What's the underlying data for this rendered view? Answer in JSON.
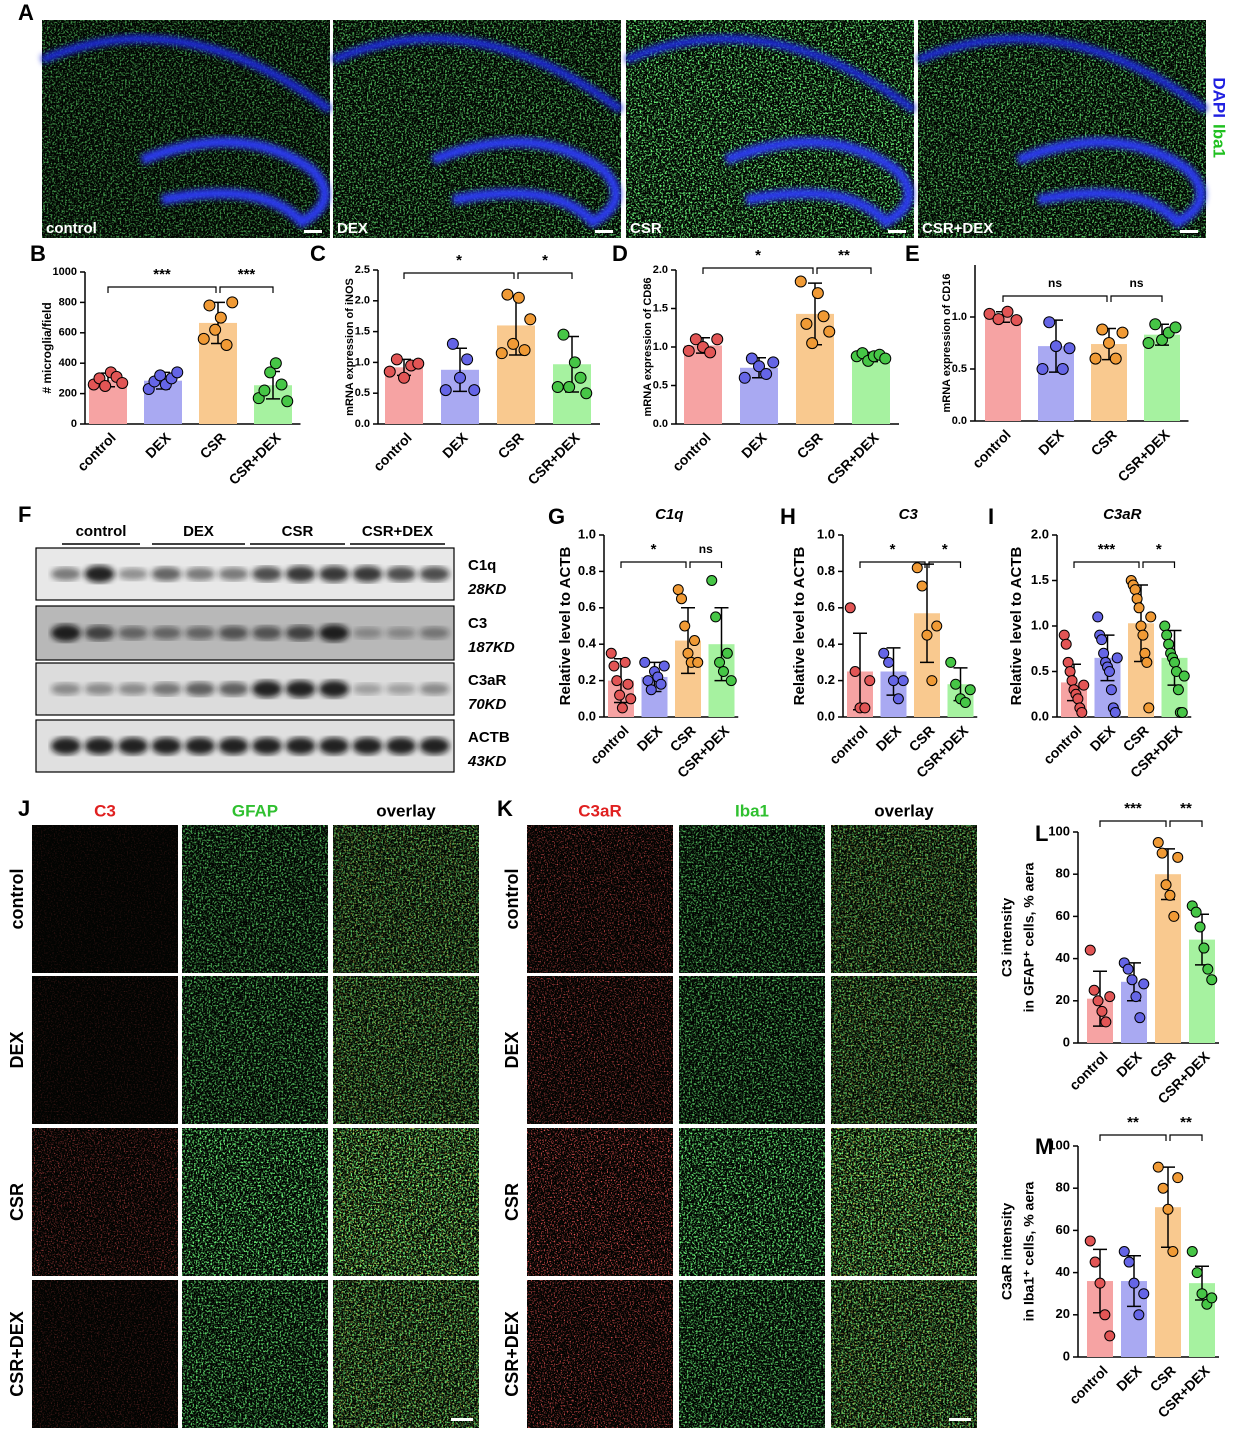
{
  "panel_a": {
    "label": "A",
    "images": [
      "control",
      "DEX",
      "CSR",
      "CSR+DEX"
    ],
    "stain": [
      "DAPI",
      "Iba1"
    ]
  },
  "panel_f": {
    "label": "F",
    "groups": [
      "control",
      "DEX",
      "CSR",
      "CSR+DEX"
    ],
    "bands": [
      {
        "name": "C1q",
        "size": "28KD"
      },
      {
        "name": "C3",
        "size": "187KD"
      },
      {
        "name": "C3aR",
        "size": "70KD"
      },
      {
        "name": "ACTB",
        "size": "43KD"
      }
    ]
  },
  "panel_j": {
    "label": "J",
    "columns": [
      "C3",
      "GFAP",
      "overlay"
    ],
    "rows": [
      "control",
      "DEX",
      "CSR",
      "CSR+DEX"
    ]
  },
  "panel_k": {
    "label": "K",
    "columns": [
      "C3aR",
      "Iba1",
      "overlay"
    ],
    "rows": [
      "control",
      "DEX",
      "CSR",
      "CSR+DEX"
    ]
  },
  "chart_data": [
    {
      "type": "bar",
      "panel": "B",
      "ylabel": [
        "# microglia/field"
      ],
      "categories": [
        "control",
        "DEX",
        "CSR",
        "CSR+DEX"
      ],
      "values": [
        290,
        285,
        665,
        255
      ],
      "errors": [
        45,
        55,
        135,
        90
      ],
      "points": [
        [
          260,
          300,
          250,
          340,
          310,
          270
        ],
        [
          230,
          280,
          320,
          260,
          300,
          340
        ],
        [
          560,
          780,
          620,
          700,
          520,
          800
        ],
        [
          170,
          220,
          340,
          400,
          260,
          150
        ]
      ],
      "ylim": [
        0,
        1000
      ],
      "yticks": [
        0,
        200,
        400,
        600,
        800,
        1000
      ],
      "significance": [
        {
          "from": 0,
          "to": 2,
          "label": "***"
        },
        {
          "from": 2,
          "to": 3,
          "label": "***"
        }
      ],
      "colors": [
        "#f6a3a3",
        "#a9a9f2",
        "#f9c98f",
        "#a6f2a0"
      ],
      "point_colors": [
        "#e25555",
        "#6565e6",
        "#f09a35",
        "#46c646"
      ]
    },
    {
      "type": "bar",
      "panel": "C",
      "ylabel": [
        "mRNA expression of iNOS"
      ],
      "categories": [
        "control",
        "DEX",
        "CSR",
        "CSR+DEX"
      ],
      "values": [
        0.92,
        0.88,
        1.6,
        0.97
      ],
      "errors": [
        0.13,
        0.35,
        0.48,
        0.45
      ],
      "points": [
        [
          0.85,
          1.05,
          0.75,
          0.95,
          0.98
        ],
        [
          0.55,
          1.3,
          0.75,
          1.05,
          0.55
        ],
        [
          1.15,
          2.1,
          1.3,
          2.05,
          1.2,
          1.7
        ],
        [
          0.6,
          1.45,
          0.6,
          1.0,
          0.75,
          0.5
        ]
      ],
      "ylim": [
        0,
        2.5
      ],
      "yticks": [
        {
          "value": 0,
          "label": "0.0"
        },
        {
          "value": 0.5,
          "label": "0.5"
        },
        {
          "value": 1,
          "label": "1.0"
        },
        {
          "value": 1.5,
          "label": "1.5"
        },
        {
          "value": 2,
          "label": "2.0"
        },
        {
          "value": 2.5,
          "label": "2.5"
        }
      ],
      "significance": [
        {
          "from": 0,
          "to": 2,
          "label": "*"
        },
        {
          "from": 2,
          "to": 3,
          "label": "*"
        }
      ],
      "colors": [
        "#f6a3a3",
        "#a9a9f2",
        "#f9c98f",
        "#a6f2a0"
      ],
      "point_colors": [
        "#e25555",
        "#6565e6",
        "#f09a35",
        "#46c646"
      ]
    },
    {
      "type": "bar",
      "panel": "D",
      "ylabel": [
        "mRNA expression of CD86"
      ],
      "categories": [
        "control",
        "DEX",
        "CSR",
        "CSR+DEX"
      ],
      "values": [
        1.02,
        0.73,
        1.43,
        0.87
      ],
      "errors": [
        0.1,
        0.13,
        0.4,
        0.06
      ],
      "points": [
        [
          0.95,
          1.1,
          1.0,
          0.93,
          1.1
        ],
        [
          0.6,
          0.85,
          0.75,
          0.65,
          0.8
        ],
        [
          1.85,
          1.3,
          1.05,
          1.7,
          1.4,
          1.2
        ],
        [
          0.88,
          0.92,
          0.82,
          0.88,
          0.9,
          0.85
        ]
      ],
      "ylim": [
        0,
        2
      ],
      "yticks": [
        {
          "value": 0,
          "label": "0.0"
        },
        {
          "value": 0.5,
          "label": "0.5"
        },
        {
          "value": 1,
          "label": "1.0"
        },
        {
          "value": 1.5,
          "label": "1.5"
        },
        {
          "value": 2,
          "label": "2.0"
        }
      ],
      "significance": [
        {
          "from": 0,
          "to": 2,
          "label": "*"
        },
        {
          "from": 2,
          "to": 3,
          "label": "**"
        }
      ],
      "colors": [
        "#f6a3a3",
        "#a9a9f2",
        "#f9c98f",
        "#a6f2a0"
      ],
      "point_colors": [
        "#e25555",
        "#6565e6",
        "#f09a35",
        "#46c646"
      ]
    },
    {
      "type": "bar",
      "panel": "E",
      "ylabel": [
        "mRNA expression of CD16"
      ],
      "categories": [
        "control",
        "DEX",
        "CSR",
        "CSR+DEX"
      ],
      "values": [
        1.0,
        0.72,
        0.74,
        0.83
      ],
      "errors": [
        0.05,
        0.25,
        0.15,
        0.1
      ],
      "points": [
        [
          1.03,
          0.98,
          1.05,
          0.97
        ],
        [
          0.5,
          0.95,
          0.72,
          0.5,
          0.7
        ],
        [
          0.6,
          0.88,
          0.75,
          0.6,
          0.85
        ],
        [
          0.75,
          0.93,
          0.78,
          0.85,
          0.9
        ]
      ],
      "ylim": [
        0,
        1.5
      ],
      "yticks": [
        {
          "value": 0,
          "label": "0.0"
        },
        {
          "value": 0.5,
          "label": "0.5"
        },
        {
          "value": 1,
          "label": "1.0"
        }
      ],
      "significance": [
        {
          "from": 0,
          "to": 2,
          "label": "ns"
        },
        {
          "from": 2,
          "to": 3,
          "label": "ns"
        }
      ],
      "colors": [
        "#f6a3a3",
        "#a9a9f2",
        "#f9c98f",
        "#a6f2a0"
      ],
      "point_colors": [
        "#e25555",
        "#6565e6",
        "#f09a35",
        "#46c646"
      ]
    },
    {
      "type": "bar",
      "panel": "G",
      "title": "C1q",
      "ylabel": [
        "Relative level to ACTB"
      ],
      "categories": [
        "control",
        "DEX",
        "CSR",
        "CSR+DEX"
      ],
      "values": [
        0.2,
        0.22,
        0.42,
        0.4
      ],
      "errors": [
        0.12,
        0.08,
        0.18,
        0.2
      ],
      "points": [
        [
          0.35,
          0.28,
          0.2,
          0.12,
          0.05,
          0.3,
          0.18,
          0.1
        ],
        [
          0.3,
          0.2,
          0.15,
          0.25,
          0.22,
          0.18,
          0.28
        ],
        [
          0.7,
          0.65,
          0.5,
          0.35,
          0.3,
          0.42,
          0.3
        ],
        [
          0.75,
          0.55,
          0.3,
          0.25,
          0.35,
          0.2
        ]
      ],
      "ylim": [
        0,
        1
      ],
      "yticks": [
        {
          "value": 0,
          "label": "0.0"
        },
        {
          "value": 0.2,
          "label": "0.2"
        },
        {
          "value": 0.4,
          "label": "0.4"
        },
        {
          "value": 0.6,
          "label": "0.6"
        },
        {
          "value": 0.8,
          "label": "0.8"
        },
        {
          "value": 1,
          "label": "1.0"
        }
      ],
      "significance": [
        {
          "from": 0,
          "to": 2,
          "label": "*"
        },
        {
          "from": 2,
          "to": 3,
          "label": "ns"
        }
      ],
      "colors": [
        "#f6a3a3",
        "#a9a9f2",
        "#f9c98f",
        "#a6f2a0"
      ],
      "point_colors": [
        "#e25555",
        "#6565e6",
        "#f09a35",
        "#46c646"
      ]
    },
    {
      "type": "bar",
      "panel": "H",
      "title": "C3",
      "ylabel": [
        "Relative level to ACTB"
      ],
      "categories": [
        "control",
        "DEX",
        "CSR",
        "CSR+DEX"
      ],
      "values": [
        0.25,
        0.25,
        0.57,
        0.18
      ],
      "errors": [
        0.21,
        0.13,
        0.27,
        0.09
      ],
      "points": [
        [
          0.6,
          0.25,
          0.05,
          0.05,
          0.2
        ],
        [
          0.35,
          0.3,
          0.2,
          0.1,
          0.2
        ],
        [
          0.82,
          0.72,
          0.45,
          0.2,
          0.5
        ],
        [
          0.3,
          0.18,
          0.1,
          0.08,
          0.15
        ]
      ],
      "ylim": [
        0,
        1
      ],
      "yticks": [
        {
          "value": 0,
          "label": "0.0"
        },
        {
          "value": 0.2,
          "label": "0.2"
        },
        {
          "value": 0.4,
          "label": "0.4"
        },
        {
          "value": 0.6,
          "label": "0.6"
        },
        {
          "value": 0.8,
          "label": "0.8"
        },
        {
          "value": 1,
          "label": "1.0"
        }
      ],
      "significance": [
        {
          "from": 0,
          "to": 2,
          "label": "*"
        },
        {
          "from": 2,
          "to": 3,
          "label": "*"
        }
      ],
      "colors": [
        "#f6a3a3",
        "#a9a9f2",
        "#f9c98f",
        "#a6f2a0"
      ],
      "point_colors": [
        "#e25555",
        "#6565e6",
        "#f09a35",
        "#46c646"
      ]
    },
    {
      "type": "bar",
      "panel": "I",
      "title": "C3aR",
      "ylabel": [
        "Relative level to ACTB"
      ],
      "categories": [
        "control",
        "DEX",
        "CSR",
        "CSR+DEX"
      ],
      "values": [
        0.38,
        0.65,
        1.03,
        0.65
      ],
      "errors": [
        0.2,
        0.25,
        0.42,
        0.3
      ],
      "points": [
        [
          0.9,
          0.8,
          0.6,
          0.5,
          0.4,
          0.3,
          0.25,
          0.2,
          0.1,
          0.05,
          0.35
        ],
        [
          1.1,
          0.9,
          0.85,
          0.7,
          0.6,
          0.55,
          0.5,
          0.3,
          0.1,
          0.05,
          0.65
        ],
        [
          1.5,
          1.45,
          1.4,
          1.3,
          1.2,
          1.0,
          0.9,
          0.7,
          0.6,
          0.1,
          1.1
        ],
        [
          1.0,
          0.9,
          0.8,
          0.7,
          0.65,
          0.6,
          0.5,
          0.3,
          0.05,
          0.05,
          0.45
        ]
      ],
      "ylim": [
        0,
        2
      ],
      "yticks": [
        {
          "value": 0,
          "label": "0.0"
        },
        {
          "value": 0.5,
          "label": "0.5"
        },
        {
          "value": 1,
          "label": "1.0"
        },
        {
          "value": 1.5,
          "label": "1.5"
        },
        {
          "value": 2,
          "label": "2.0"
        }
      ],
      "significance": [
        {
          "from": 0,
          "to": 2,
          "label": "***"
        },
        {
          "from": 2,
          "to": 3,
          "label": "*"
        }
      ],
      "colors": [
        "#f6a3a3",
        "#a9a9f2",
        "#f9c98f",
        "#a6f2a0"
      ],
      "point_colors": [
        "#e25555",
        "#6565e6",
        "#f09a35",
        "#46c646"
      ]
    },
    {
      "type": "bar",
      "panel": "L",
      "ylabel": [
        "C3 intensity",
        "in GFAP⁺ cells, % aera"
      ],
      "categories": [
        "control",
        "DEX",
        "CSR",
        "CSR+DEX"
      ],
      "values": [
        21,
        29,
        80,
        49
      ],
      "errors": [
        13,
        9,
        12,
        12
      ],
      "points": [
        [
          44,
          25,
          20,
          15,
          10,
          22
        ],
        [
          38,
          35,
          30,
          22,
          12,
          28
        ],
        [
          95,
          90,
          75,
          70,
          60,
          88
        ],
        [
          65,
          62,
          55,
          45,
          35,
          30
        ]
      ],
      "ylim": [
        0,
        100
      ],
      "yticks": [
        0,
        20,
        40,
        60,
        80,
        100
      ],
      "significance": [
        {
          "from": 0,
          "to": 2,
          "label": "***"
        },
        {
          "from": 2,
          "to": 3,
          "label": "**"
        }
      ],
      "colors": [
        "#f6a3a3",
        "#a9a9f2",
        "#f9c98f",
        "#a6f2a0"
      ],
      "point_colors": [
        "#e25555",
        "#6565e6",
        "#f09a35",
        "#46c646"
      ]
    },
    {
      "type": "bar",
      "panel": "M",
      "ylabel": [
        "C3aR intensity",
        "in Iba1⁺ cells, % aera"
      ],
      "categories": [
        "control",
        "DEX",
        "CSR",
        "CSR+DEX"
      ],
      "values": [
        36,
        36,
        71,
        35
      ],
      "errors": [
        15,
        12,
        19,
        8
      ],
      "points": [
        [
          55,
          45,
          35,
          20,
          10
        ],
        [
          50,
          45,
          35,
          20,
          30
        ],
        [
          90,
          80,
          70,
          50,
          85
        ],
        [
          50,
          40,
          30,
          25,
          28
        ]
      ],
      "ylim": [
        0,
        100
      ],
      "yticks": [
        0,
        20,
        40,
        60,
        80,
        100
      ],
      "significance": [
        {
          "from": 0,
          "to": 2,
          "label": "**"
        },
        {
          "from": 2,
          "to": 3,
          "label": "**"
        }
      ],
      "colors": [
        "#f6a3a3",
        "#a9a9f2",
        "#f9c98f",
        "#a6f2a0"
      ],
      "point_colors": [
        "#e25555",
        "#6565e6",
        "#f09a35",
        "#46c646"
      ]
    }
  ]
}
